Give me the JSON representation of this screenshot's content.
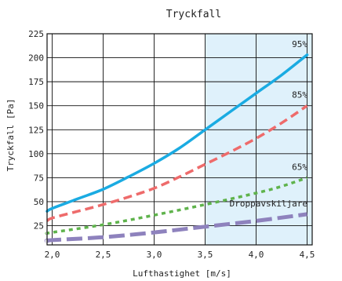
{
  "chart_data": {
    "type": "line",
    "title": "Tryckfall",
    "xlabel": "Lufthastighet   [m/s]",
    "ylabel": "Tryckfall   [Pa]",
    "xlim": [
      1.95,
      4.55
    ],
    "ylim": [
      5,
      225
    ],
    "x_ticks": [
      2.0,
      2.5,
      3.0,
      3.5,
      4.0,
      4.5
    ],
    "x_tick_labels": [
      "2,0",
      "2,5",
      "3,0",
      "3,5",
      "4,0",
      "4,5"
    ],
    "y_ticks": [
      25,
      50,
      75,
      100,
      125,
      150,
      175,
      200,
      225
    ],
    "y_tick_labels": [
      "25",
      "50",
      "75",
      "100",
      "125",
      "150",
      "175",
      "200",
      "225"
    ],
    "grid": true,
    "highlight_range": {
      "x": [
        3.5,
        4.5
      ],
      "color": "#dff1fb"
    },
    "series": [
      {
        "name": "95%",
        "color": "#1aabe2",
        "style": "solid",
        "x": [
          1.95,
          2.0,
          2.25,
          2.5,
          2.75,
          3.0,
          3.25,
          3.5,
          3.75,
          4.0,
          4.25,
          4.5
        ],
        "y": [
          40,
          43,
          53,
          63,
          76,
          90,
          106,
          125,
          144,
          163,
          182,
          203
        ]
      },
      {
        "name": "85%",
        "color": "#ee6b6b",
        "style": "dashed",
        "x": [
          1.95,
          2.0,
          2.25,
          2.5,
          2.75,
          3.0,
          3.25,
          3.5,
          3.75,
          4.0,
          4.25,
          4.5
        ],
        "y": [
          30,
          33,
          40,
          47,
          55,
          64,
          76,
          89,
          102,
          116,
          132,
          150
        ]
      },
      {
        "name": "65%",
        "color": "#5fb34c",
        "style": "dotted",
        "x": [
          1.95,
          2.0,
          2.5,
          3.0,
          3.5,
          4.0,
          4.25,
          4.5
        ],
        "y": [
          17,
          18,
          26,
          36,
          47,
          59,
          66,
          75
        ]
      },
      {
        "name": "Droppavskiljare",
        "color": "#8e82bd",
        "style": "longdash",
        "x": [
          1.95,
          2.0,
          2.5,
          3.0,
          3.5,
          4.0,
          4.5
        ],
        "y": [
          9,
          10,
          13,
          18,
          24,
          30,
          37
        ]
      }
    ]
  }
}
